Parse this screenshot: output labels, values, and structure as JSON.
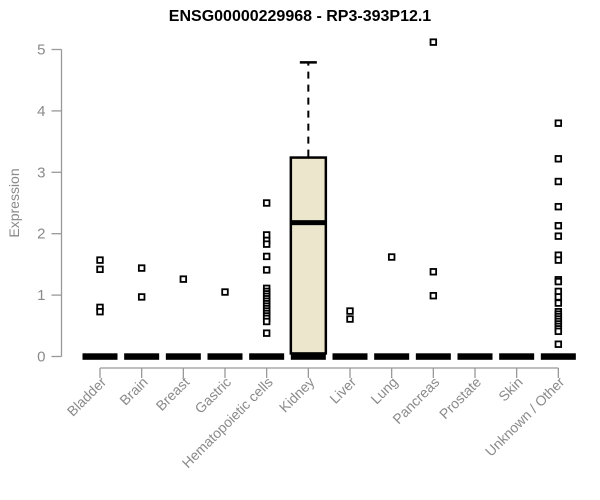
{
  "chart_data": {
    "type": "boxplot",
    "title": "ENSG00000229968 - RP3-393P12.1",
    "ylabel": "Expression",
    "xlabel": "",
    "ylim": [
      0,
      5.3
    ],
    "yticks": [
      0,
      1,
      2,
      3,
      4,
      5
    ],
    "grid": false,
    "legend": false,
    "categories": [
      "Bladder",
      "Brain",
      "Breast",
      "Gastric",
      "Hematopoietic cells",
      "Kidney",
      "Liver",
      "Lung",
      "Pancreas",
      "Prostate",
      "Skin",
      "Unknown / Other"
    ],
    "series": [
      {
        "category": "Bladder",
        "low": 0,
        "q1": 0,
        "median": 0,
        "q3": 0,
        "high": 0,
        "outliers": [
          1.57,
          1.42,
          0.8,
          0.73
        ]
      },
      {
        "category": "Brain",
        "low": 0,
        "q1": 0,
        "median": 0,
        "q3": 0,
        "high": 0,
        "outliers": [
          1.44,
          0.97
        ]
      },
      {
        "category": "Breast",
        "low": 0,
        "q1": 0,
        "median": 0,
        "q3": 0,
        "high": 0,
        "outliers": [
          1.26
        ]
      },
      {
        "category": "Gastric",
        "low": 0,
        "q1": 0,
        "median": 0,
        "q3": 0,
        "high": 0,
        "outliers": [
          1.05
        ]
      },
      {
        "category": "Hematopoietic cells",
        "low": 0,
        "q1": 0,
        "median": 0,
        "q3": 0,
        "high": 0,
        "outliers": [
          2.5,
          1.98,
          1.89,
          1.83,
          1.63,
          1.41,
          1.11,
          1.06,
          1.02,
          0.98,
          0.94,
          0.9,
          0.86,
          0.82,
          0.78,
          0.74,
          0.7,
          0.66,
          0.62,
          0.57,
          0.38
        ]
      },
      {
        "category": "Kidney",
        "low": 0,
        "q1": 0.05,
        "median": 2.18,
        "q3": 3.24,
        "high": 4.79,
        "outliers": []
      },
      {
        "category": "Liver",
        "low": 0,
        "q1": 0,
        "median": 0,
        "q3": 0,
        "high": 0,
        "outliers": [
          0.74,
          0.61
        ]
      },
      {
        "category": "Lung",
        "low": 0,
        "q1": 0,
        "median": 0,
        "q3": 0,
        "high": 0,
        "outliers": [
          1.62
        ]
      },
      {
        "category": "Pancreas",
        "low": 0,
        "q1": 0,
        "median": 0,
        "q3": 0,
        "high": 0,
        "outliers": [
          5.12,
          1.38,
          0.99
        ]
      },
      {
        "category": "Prostate",
        "low": 0,
        "q1": 0,
        "median": 0,
        "q3": 0,
        "high": 0,
        "outliers": []
      },
      {
        "category": "Skin",
        "low": 0,
        "q1": 0,
        "median": 0,
        "q3": 0,
        "high": 0,
        "outliers": []
      },
      {
        "category": "Unknown / Other",
        "low": 0,
        "q1": 0,
        "median": 0,
        "q3": 0,
        "high": 0,
        "outliers": [
          3.8,
          3.22,
          2.85,
          2.44,
          2.13,
          1.96,
          1.65,
          1.57,
          1.25,
          1.22,
          1.06,
          0.97,
          0.87,
          0.73,
          0.69,
          0.65,
          0.61,
          0.57,
          0.53,
          0.49,
          0.45,
          0.41,
          0.2
        ]
      }
    ]
  },
  "colors": {
    "background": "#ffffff",
    "title_text": "#000000",
    "axis_text": "#8a8a8a",
    "axis_line": "#999999",
    "box_fill": "#ece6cd",
    "box_border": "#000000",
    "outlier_fill": "#ffffff",
    "outlier_border": "#000000"
  }
}
